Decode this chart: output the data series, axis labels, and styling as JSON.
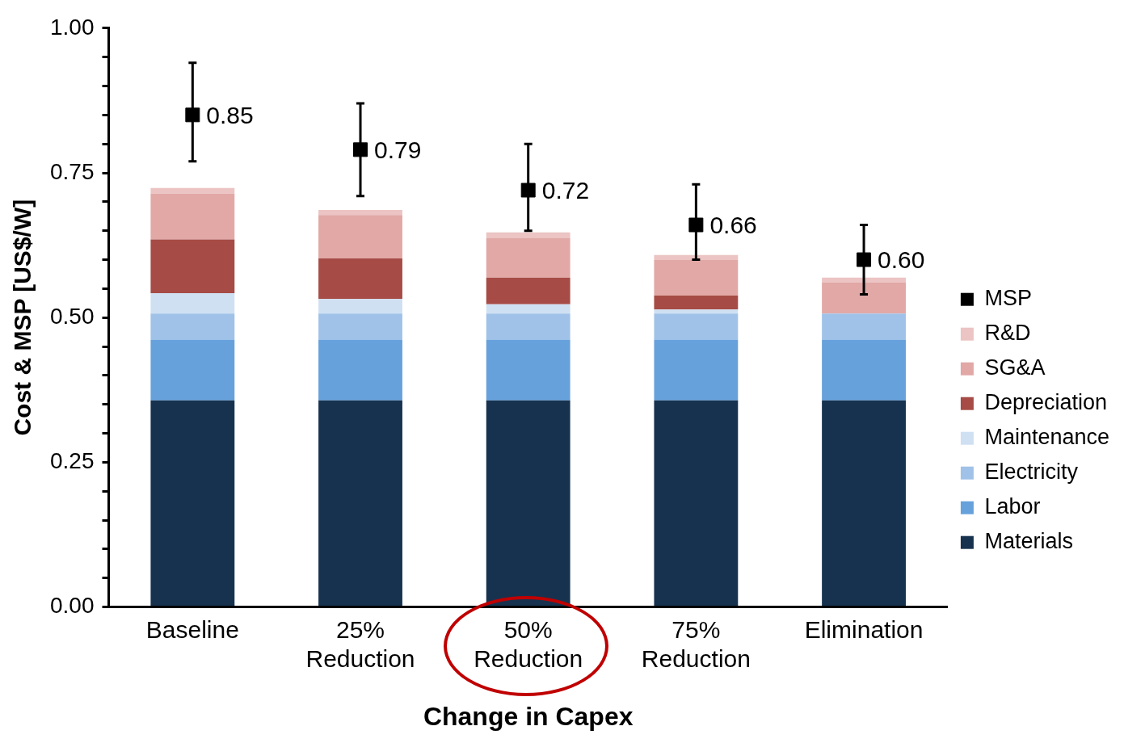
{
  "chart_data": {
    "type": "bar",
    "stacked": true,
    "xlabel": "Change in Capex",
    "ylabel": "Cost & MSP [US$/W]",
    "categories": [
      "Baseline",
      "25% Reduction",
      "50% Reduction",
      "75% Reduction",
      "Elimination"
    ],
    "ylim": [
      0,
      1
    ],
    "yticks": [
      {
        "value": 0,
        "label": "0.00"
      },
      {
        "value": 0.05,
        "label": null
      },
      {
        "value": 0.1,
        "label": null
      },
      {
        "value": 0.15,
        "label": null
      },
      {
        "value": 0.2,
        "label": null
      },
      {
        "value": 0.25,
        "label": "0.25"
      },
      {
        "value": 0.3,
        "label": null
      },
      {
        "value": 0.35,
        "label": null
      },
      {
        "value": 0.4,
        "label": null
      },
      {
        "value": 0.45,
        "label": null
      },
      {
        "value": 0.5,
        "label": "0.50"
      },
      {
        "value": 0.55,
        "label": null
      },
      {
        "value": 0.6,
        "label": null
      },
      {
        "value": 0.65,
        "label": null
      },
      {
        "value": 0.7,
        "label": null
      },
      {
        "value": 0.75,
        "label": "0.75"
      },
      {
        "value": 0.8,
        "label": null
      },
      {
        "value": 0.85,
        "label": null
      },
      {
        "value": 0.9,
        "label": null
      },
      {
        "value": 0.95,
        "label": null
      },
      {
        "value": 1,
        "label": "1.00"
      }
    ],
    "grid": false,
    "legend": "right",
    "series": [
      {
        "name": "Materials",
        "color": "#17324f",
        "values": [
          0.357,
          0.357,
          0.357,
          0.357,
          0.357
        ]
      },
      {
        "name": "Labor",
        "color": "#67a1dc",
        "values": [
          0.105,
          0.105,
          0.105,
          0.105,
          0.105
        ]
      },
      {
        "name": "Electricity",
        "color": "#a0c2e8",
        "values": [
          0.045,
          0.045,
          0.045,
          0.045,
          0.045
        ]
      },
      {
        "name": "Maintenance",
        "color": "#cfe0f3",
        "values": [
          0.035,
          0.025,
          0.016,
          0.007,
          0
        ]
      },
      {
        "name": "Depreciation",
        "color": "#a64b45",
        "values": [
          0.093,
          0.07,
          0.046,
          0.024,
          0
        ]
      },
      {
        "name": "SG&A",
        "color": "#e1a8a6",
        "values": [
          0.079,
          0.075,
          0.068,
          0.062,
          0.054
        ]
      },
      {
        "name": "R&D",
        "color": "#ebc4c3",
        "values": [
          0.01,
          0.009,
          0.01,
          0.008,
          0.008
        ]
      },
      {
        "name": "MSP",
        "type": "scatter",
        "marker": "square",
        "color": "#000000",
        "x": [
          "Baseline",
          "25% Reduction",
          "50% Reduction",
          "75% Reduction",
          "Elimination"
        ],
        "values": [
          0.85,
          0.79,
          0.72,
          0.66,
          0.6
        ],
        "value_labels": [
          "0.85",
          "0.79",
          "0.72",
          "0.66",
          "0.60"
        ],
        "errors": [
          [
            0.77,
            0.94
          ],
          [
            0.71,
            0.87
          ],
          [
            0.65,
            0.8
          ],
          [
            0.6,
            0.73
          ],
          [
            0.54,
            0.66
          ]
        ]
      }
    ]
  }
}
